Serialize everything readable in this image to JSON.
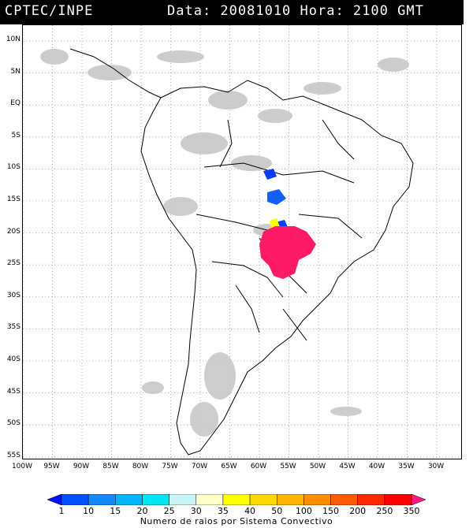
{
  "header": {
    "agency": "CPTEC/INPE",
    "timestamp": "Data: 20081010 Hora: 2100 GMT"
  },
  "map": {
    "lat_labels": [
      "10N",
      "5N",
      "EQ",
      "5S",
      "10S",
      "15S",
      "20S",
      "25S",
      "30S",
      "35S",
      "40S",
      "45S",
      "50S",
      "55S"
    ],
    "lon_labels": [
      "100W",
      "95W",
      "90W",
      "85W",
      "80W",
      "75W",
      "70W",
      "65W",
      "60W",
      "55W",
      "50W",
      "45W",
      "40W",
      "35W",
      "30W"
    ],
    "gridlines": true,
    "colors": {
      "land_outline": "#000000",
      "cloud": "#b8b8b8",
      "blue_cells": "#0a3cff",
      "yellow_cells": "#ffff00",
      "magenta_cells": "#ff1a66"
    }
  },
  "legend": {
    "tick_labels": [
      "1",
      "10",
      "15",
      "20",
      "25",
      "30",
      "35",
      "40",
      "50",
      "100",
      "150",
      "200",
      "250",
      "350"
    ],
    "title": "Numero de raios por Sistema Convectivo",
    "colors": [
      "#0010ff",
      "#0050ff",
      "#1488ff",
      "#00b4ff",
      "#00e6f0",
      "#c8f5f5",
      "#ffffc8",
      "#ffff00",
      "#ffd700",
      "#ffb400",
      "#ff8c00",
      "#ff5a00",
      "#ff2800",
      "#ff0000",
      "#ff1a80"
    ]
  }
}
